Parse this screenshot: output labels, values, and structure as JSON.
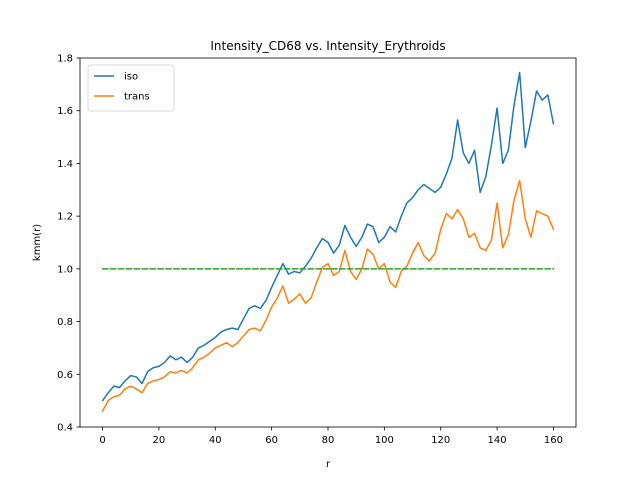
{
  "chart_data": {
    "type": "line",
    "title": "Intensity_CD68 vs. Intensity_Erythroids",
    "xlabel": "r",
    "ylabel": "kmm(r)",
    "xlim": [
      -8,
      168
    ],
    "ylim": [
      0.4,
      1.8
    ],
    "xticks": [
      0,
      20,
      40,
      60,
      80,
      100,
      120,
      140,
      160
    ],
    "yticks": [
      0.4,
      0.6,
      0.8,
      1.0,
      1.2,
      1.4,
      1.6,
      1.8
    ],
    "ytick_labels": [
      "0.4",
      "0.6",
      "0.8",
      "1.0",
      "1.2",
      "1.4",
      "1.6",
      "1.8"
    ],
    "grid": false,
    "legend_position": "top-left",
    "series": [
      {
        "name": "iso",
        "color": "#1f77b4",
        "style": "solid",
        "x": [
          0,
          2,
          4,
          6,
          8,
          10,
          12,
          14,
          16,
          18,
          20,
          22,
          24,
          26,
          28,
          30,
          32,
          34,
          36,
          38,
          40,
          42,
          44,
          46,
          48,
          50,
          52,
          54,
          56,
          58,
          60,
          62,
          64,
          66,
          68,
          70,
          72,
          74,
          76,
          78,
          80,
          82,
          84,
          86,
          88,
          90,
          92,
          94,
          96,
          98,
          100,
          102,
          104,
          106,
          108,
          110,
          112,
          114,
          116,
          118,
          120,
          122,
          124,
          126,
          128,
          130,
          132,
          134,
          136,
          138,
          140,
          142,
          144,
          146,
          148,
          150,
          152,
          154,
          156,
          158,
          160
        ],
        "values": [
          0.5,
          0.53,
          0.555,
          0.55,
          0.575,
          0.595,
          0.59,
          0.565,
          0.61,
          0.625,
          0.63,
          0.645,
          0.67,
          0.655,
          0.665,
          0.645,
          0.665,
          0.7,
          0.71,
          0.725,
          0.74,
          0.76,
          0.77,
          0.775,
          0.77,
          0.81,
          0.85,
          0.86,
          0.85,
          0.88,
          0.93,
          0.975,
          1.02,
          0.98,
          0.99,
          0.985,
          1.01,
          1.04,
          1.08,
          1.115,
          1.1,
          1.06,
          1.09,
          1.165,
          1.12,
          1.085,
          1.12,
          1.17,
          1.16,
          1.1,
          1.12,
          1.16,
          1.14,
          1.2,
          1.25,
          1.27,
          1.3,
          1.32,
          1.305,
          1.29,
          1.31,
          1.36,
          1.42,
          1.565,
          1.44,
          1.4,
          1.45,
          1.29,
          1.35,
          1.47,
          1.61,
          1.4,
          1.45,
          1.62,
          1.745,
          1.46,
          1.56,
          1.675,
          1.64,
          1.66,
          1.55
        ]
      },
      {
        "name": "trans",
        "color": "#ff7f0e",
        "style": "solid",
        "x": [
          0,
          2,
          4,
          6,
          8,
          10,
          12,
          14,
          16,
          18,
          20,
          22,
          24,
          26,
          28,
          30,
          32,
          34,
          36,
          38,
          40,
          42,
          44,
          46,
          48,
          50,
          52,
          54,
          56,
          58,
          60,
          62,
          64,
          66,
          68,
          70,
          72,
          74,
          76,
          78,
          80,
          82,
          84,
          86,
          88,
          90,
          92,
          94,
          96,
          98,
          100,
          102,
          104,
          106,
          108,
          110,
          112,
          114,
          116,
          118,
          120,
          122,
          124,
          126,
          128,
          130,
          132,
          134,
          136,
          138,
          140,
          142,
          144,
          146,
          148,
          150,
          152,
          154,
          156,
          158,
          160
        ],
        "values": [
          0.46,
          0.5,
          0.515,
          0.52,
          0.545,
          0.555,
          0.545,
          0.53,
          0.565,
          0.575,
          0.58,
          0.59,
          0.61,
          0.605,
          0.615,
          0.605,
          0.625,
          0.655,
          0.665,
          0.68,
          0.7,
          0.71,
          0.72,
          0.705,
          0.72,
          0.745,
          0.77,
          0.775,
          0.765,
          0.805,
          0.855,
          0.89,
          0.935,
          0.87,
          0.885,
          0.905,
          0.87,
          0.89,
          0.95,
          1.005,
          1.02,
          0.975,
          0.99,
          1.07,
          0.99,
          0.96,
          1.0,
          1.075,
          1.055,
          1.0,
          1.02,
          0.95,
          0.93,
          0.99,
          1.01,
          1.06,
          1.1,
          1.05,
          1.03,
          1.06,
          1.15,
          1.21,
          1.19,
          1.225,
          1.19,
          1.12,
          1.135,
          1.08,
          1.07,
          1.11,
          1.25,
          1.08,
          1.13,
          1.26,
          1.335,
          1.19,
          1.12,
          1.22,
          1.21,
          1.2,
          1.15
        ]
      },
      {
        "color": "#2ca02c",
        "style": "dashed",
        "x": [
          0,
          160
        ],
        "values": [
          1.0,
          1.0
        ]
      }
    ]
  }
}
